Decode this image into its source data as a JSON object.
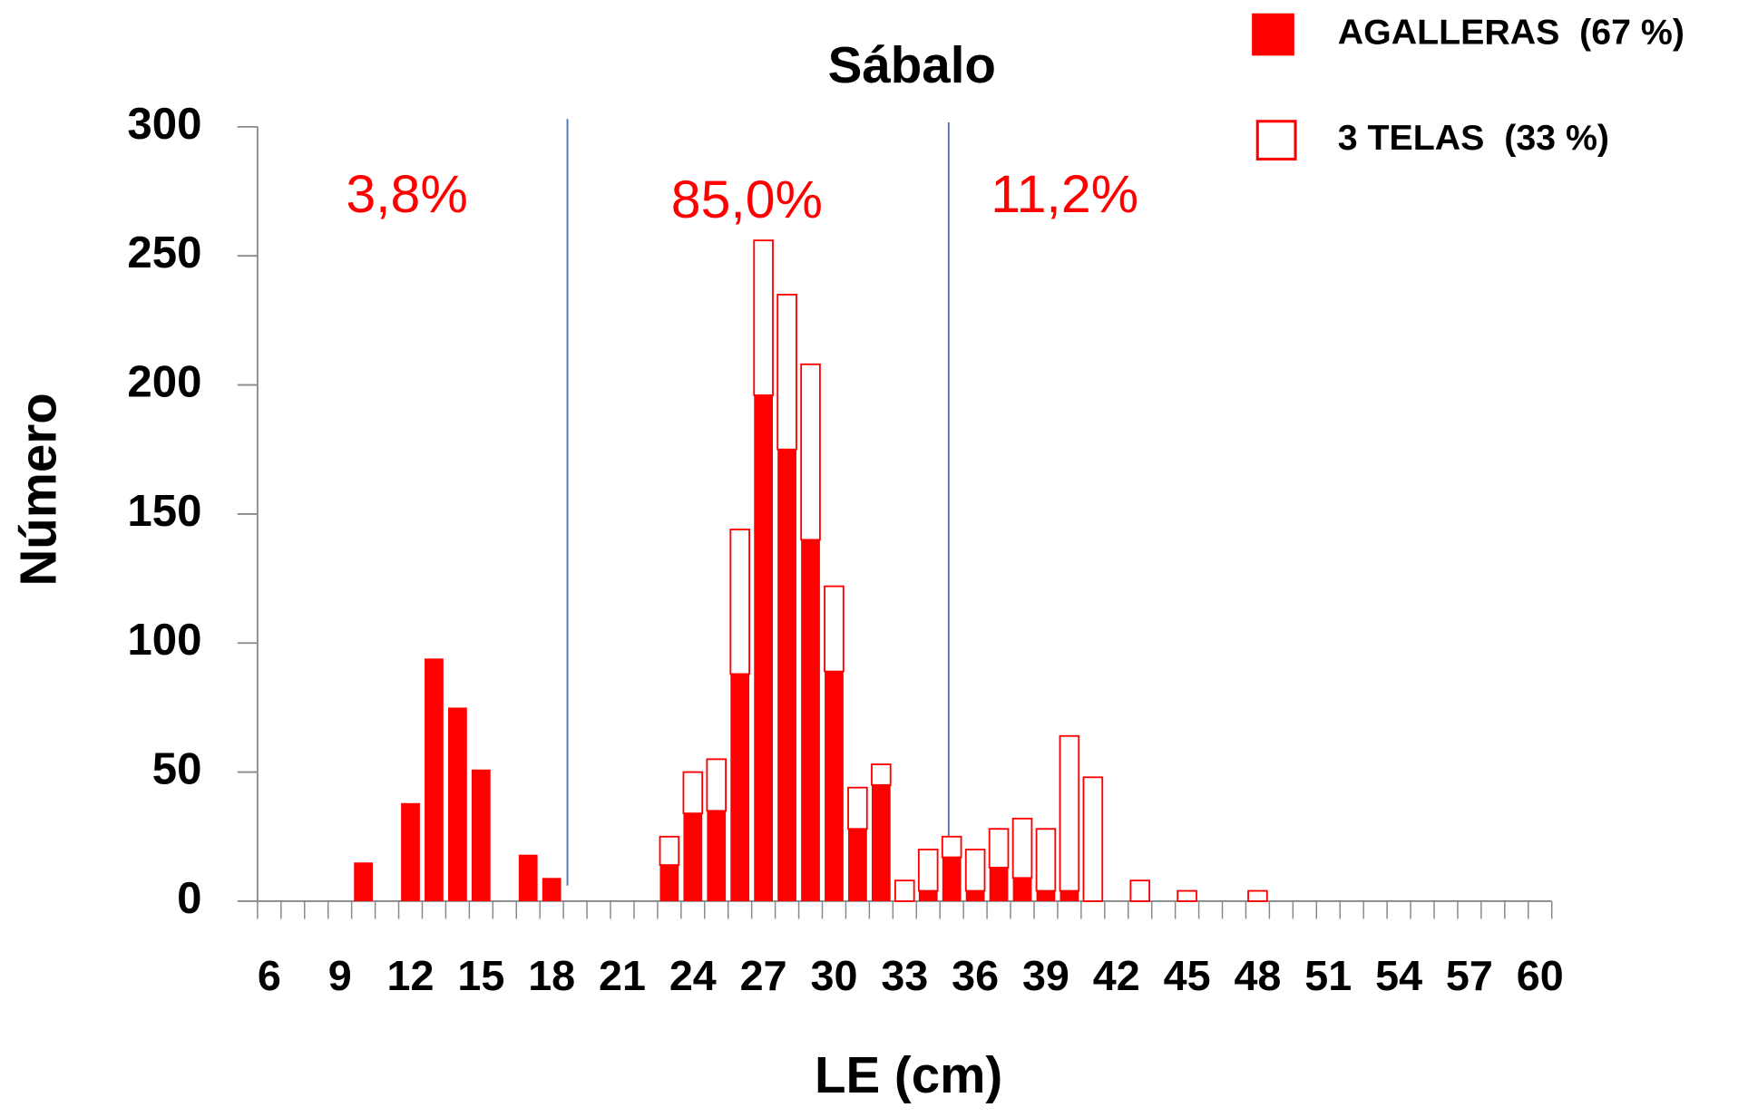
{
  "chart_data": {
    "type": "bar",
    "stacked": true,
    "title": "Sábalo",
    "x_label": "LE (cm)",
    "y_label": "Número",
    "categories": [
      "6",
      null,
      null,
      "9",
      null,
      null,
      "12",
      null,
      null,
      "15",
      null,
      null,
      "18",
      null,
      null,
      "21",
      null,
      null,
      "24",
      null,
      null,
      "27",
      null,
      null,
      "30",
      null,
      null,
      "33",
      null,
      null,
      "36",
      null,
      null,
      "39",
      null,
      null,
      "42",
      null,
      null,
      "45",
      null,
      null,
      "48",
      null,
      null,
      "51",
      null,
      null,
      "54",
      null,
      null,
      "57",
      null,
      null,
      "60"
    ],
    "series": [
      {
        "name": "AGALLERAS  (67 %)",
        "color": "#ff0000",
        "fill": "solid",
        "values": [
          0,
          0,
          0,
          0,
          15,
          0,
          38,
          94,
          75,
          51,
          0,
          18,
          9,
          0,
          0,
          0,
          0,
          14,
          34,
          35,
          88,
          196,
          175,
          140,
          89,
          28,
          45,
          0,
          4,
          17,
          4,
          13,
          9,
          4,
          4,
          0,
          0,
          0,
          0,
          0,
          0,
          0,
          0,
          0,
          0,
          0,
          0,
          0,
          0,
          0,
          0,
          0,
          0,
          0,
          0
        ]
      },
      {
        "name": "3 TELAS  (33 %)",
        "color": "#ff0000",
        "fill": "hollow",
        "values": [
          0,
          0,
          0,
          0,
          0,
          0,
          0,
          0,
          0,
          0,
          0,
          0,
          0,
          0,
          0,
          0,
          0,
          11,
          16,
          20,
          56,
          60,
          60,
          68,
          33,
          16,
          8,
          8,
          16,
          8,
          16,
          15,
          23,
          24,
          60,
          48,
          0,
          8,
          0,
          4,
          0,
          0,
          4,
          0,
          0,
          0,
          0,
          0,
          0,
          0,
          0,
          0,
          0,
          0,
          0
        ]
      }
    ],
    "annotations": [
      "3,8%",
      "85,0%",
      "11,2%"
    ],
    "ylim": [
      0,
      300
    ],
    "yticks": [
      0,
      50,
      100,
      150,
      200,
      250,
      300
    ],
    "legend": "top-right"
  }
}
